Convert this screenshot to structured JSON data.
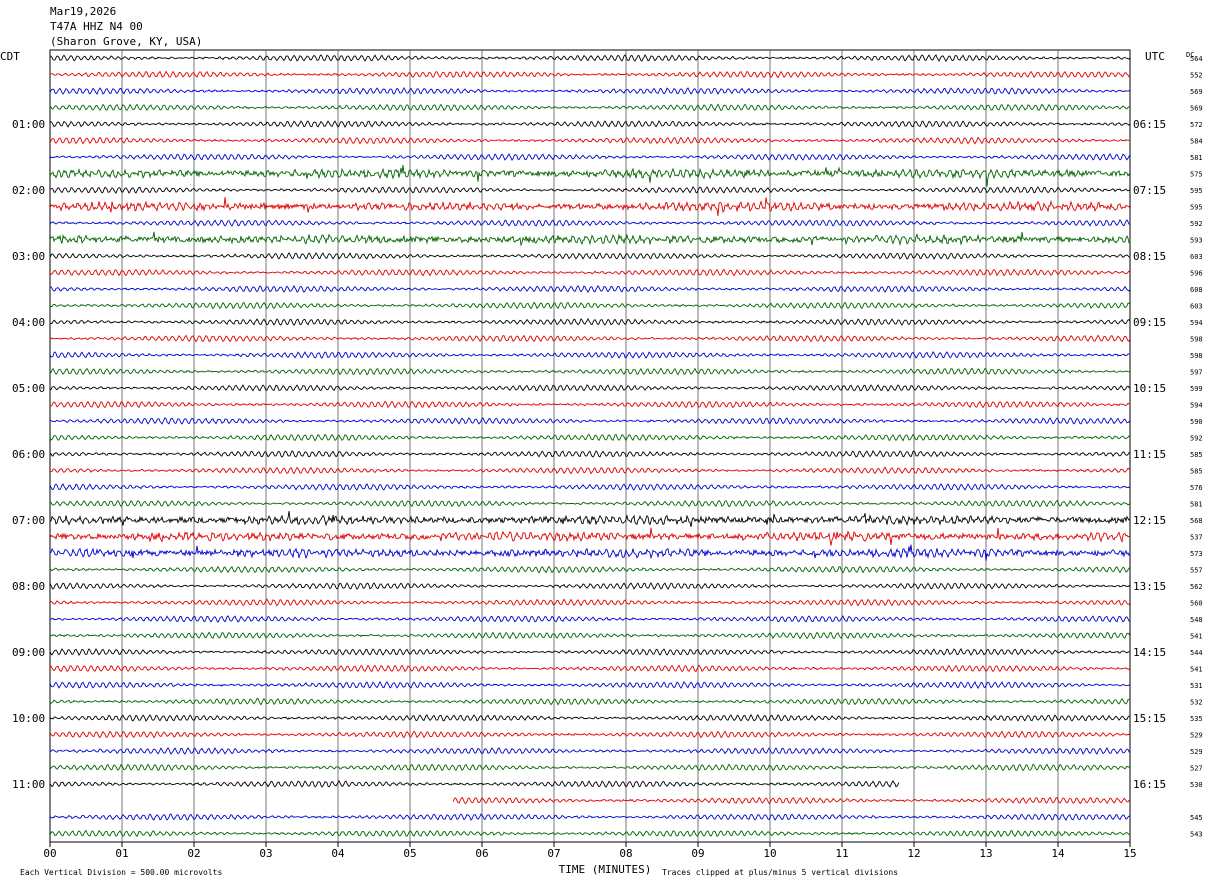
{
  "header": {
    "date": "Mar19,2026",
    "station": "T47A HHZ N4 00",
    "location": "(Sharon Grove, KY, USA)"
  },
  "labels": {
    "left_zone": "CDT",
    "right_zone": "UTC",
    "dc_label": "DC",
    "x_title": "TIME (MINUTES)",
    "footer_left": "Each Vertical Division =  500.00 microvolts",
    "footer_right": "Traces clipped at plus/minus 5 vertical divisions"
  },
  "chart_data": {
    "type": "line",
    "x_range": [
      0,
      15
    ],
    "x_ticks": [
      "00",
      "01",
      "02",
      "03",
      "04",
      "05",
      "06",
      "07",
      "08",
      "09",
      "10",
      "11",
      "12",
      "13",
      "14",
      "15"
    ],
    "grid": true,
    "row_colors": [
      "#000000",
      "#e00000",
      "#0000d0",
      "#006400"
    ],
    "left_hour_labels": [
      "01:00",
      "02:00",
      "03:00",
      "04:00",
      "05:00",
      "06:00",
      "07:00",
      "08:00",
      "09:00",
      "10:00",
      "11:00"
    ],
    "right_hour_labels": [
      "06:15",
      "07:15",
      "08:15",
      "09:15",
      "10:15",
      "11:15",
      "12:15",
      "13:15",
      "14:15",
      "15:15",
      "16:15"
    ],
    "dc_offsets": [
      "564",
      "552",
      "569",
      "569",
      "572",
      "584",
      "581",
      "575",
      "595",
      "595",
      "592",
      "593",
      "603",
      "596",
      "608",
      "603",
      "594",
      "598",
      "598",
      "597",
      "599",
      "594",
      "590",
      "592",
      "585",
      "585",
      "576",
      "581",
      "568",
      "537",
      "573",
      "557",
      "562",
      "560",
      "548",
      "541",
      "544",
      "541",
      "531",
      "532",
      "535",
      "529",
      "529",
      "527",
      "530",
      "",
      "545",
      "543"
    ],
    "event_rows": [
      7,
      9,
      11,
      28,
      29,
      30
    ]
  }
}
